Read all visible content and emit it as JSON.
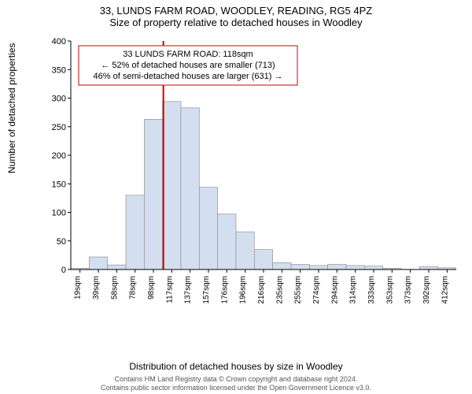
{
  "title": {
    "line1": "33, LUNDS FARM ROAD, WOODLEY, READING, RG5 4PZ",
    "line2": "Size of property relative to detached houses in Woodley"
  },
  "annotation": {
    "line1": "33 LUNDS FARM ROAD: 118sqm",
    "line2": "← 52% of detached houses are smaller (713)",
    "line3": "46% of semi-detached houses are larger (631) →",
    "border_color": "#cc0000",
    "bg_color": "#ffffff",
    "fontsize": 11
  },
  "chart": {
    "type": "histogram",
    "y": {
      "label": "Number of detached properties",
      "lim": [
        0,
        400
      ],
      "ticks": [
        0,
        50,
        100,
        150,
        200,
        250,
        300,
        350,
        400
      ],
      "label_fontsize": 12,
      "tick_fontsize": 11
    },
    "x": {
      "label": "Distribution of detached houses by size in Woodley",
      "categories": [
        "19sqm",
        "39sqm",
        "58sqm",
        "78sqm",
        "98sqm",
        "117sqm",
        "137sqm",
        "157sqm",
        "176sqm",
        "196sqm",
        "216sqm",
        "235sqm",
        "255sqm",
        "274sqm",
        "294sqm",
        "314sqm",
        "333sqm",
        "353sqm",
        "373sqm",
        "392sqm",
        "412sqm"
      ],
      "label_fontsize": 12,
      "tick_fontsize": 10
    },
    "bars": {
      "values": [
        2,
        22,
        8,
        130,
        263,
        294,
        283,
        144,
        97,
        66,
        35,
        12,
        9,
        7,
        9,
        7,
        6,
        2,
        0,
        5,
        3
      ],
      "fill_color": "#d3deee",
      "border_color": "#888888",
      "bar_width": 1.0
    },
    "marker": {
      "index": 5,
      "line_color": "#cc0000",
      "line_width": 2
    },
    "axis_color": "#000000",
    "background_color": "#ffffff"
  },
  "attribution": {
    "line1": "Contains HM Land Registry data © Crown copyright and database right 2024.",
    "line2": "Contains public sector information licensed under the Open Government Licence v3.0."
  }
}
